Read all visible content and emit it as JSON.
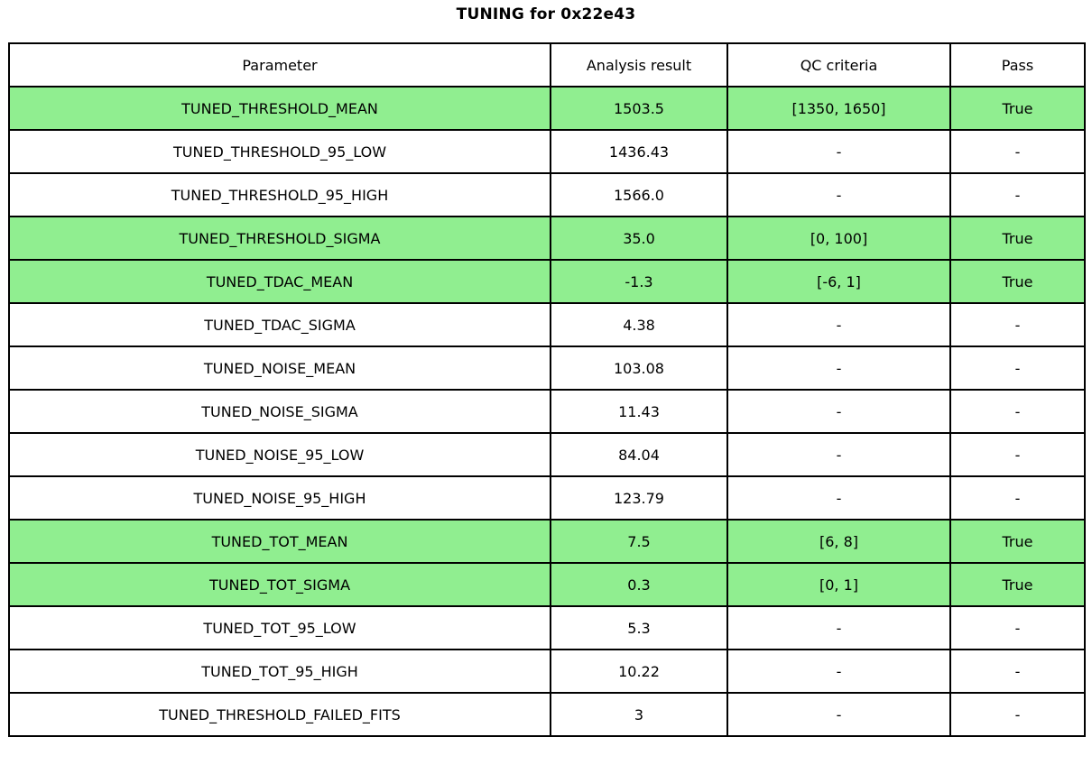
{
  "chart_data": {
    "type": "table",
    "title": "TUNING for 0x22e43",
    "columns": [
      "Parameter",
      "Analysis result",
      "QC criteria",
      "Pass"
    ],
    "rows": [
      {
        "parameter": "TUNED_THRESHOLD_MEAN",
        "result": "1503.5",
        "criteria": "[1350, 1650]",
        "pass": "True",
        "highlight": true
      },
      {
        "parameter": "TUNED_THRESHOLD_95_LOW",
        "result": "1436.43",
        "criteria": "-",
        "pass": "-",
        "highlight": false
      },
      {
        "parameter": "TUNED_THRESHOLD_95_HIGH",
        "result": "1566.0",
        "criteria": "-",
        "pass": "-",
        "highlight": false
      },
      {
        "parameter": "TUNED_THRESHOLD_SIGMA",
        "result": "35.0",
        "criteria": "[0, 100]",
        "pass": "True",
        "highlight": true
      },
      {
        "parameter": "TUNED_TDAC_MEAN",
        "result": "-1.3",
        "criteria": "[-6, 1]",
        "pass": "True",
        "highlight": true
      },
      {
        "parameter": "TUNED_TDAC_SIGMA",
        "result": "4.38",
        "criteria": "-",
        "pass": "-",
        "highlight": false
      },
      {
        "parameter": "TUNED_NOISE_MEAN",
        "result": "103.08",
        "criteria": "-",
        "pass": "-",
        "highlight": false
      },
      {
        "parameter": "TUNED_NOISE_SIGMA",
        "result": "11.43",
        "criteria": "-",
        "pass": "-",
        "highlight": false
      },
      {
        "parameter": "TUNED_NOISE_95_LOW",
        "result": "84.04",
        "criteria": "-",
        "pass": "-",
        "highlight": false
      },
      {
        "parameter": "TUNED_NOISE_95_HIGH",
        "result": "123.79",
        "criteria": "-",
        "pass": "-",
        "highlight": false
      },
      {
        "parameter": "TUNED_TOT_MEAN",
        "result": "7.5",
        "criteria": "[6, 8]",
        "pass": "True",
        "highlight": true
      },
      {
        "parameter": "TUNED_TOT_SIGMA",
        "result": "0.3",
        "criteria": "[0, 1]",
        "pass": "True",
        "highlight": true
      },
      {
        "parameter": "TUNED_TOT_95_LOW",
        "result": "5.3",
        "criteria": "-",
        "pass": "-",
        "highlight": false
      },
      {
        "parameter": "TUNED_TOT_95_HIGH",
        "result": "10.22",
        "criteria": "-",
        "pass": "-",
        "highlight": false
      },
      {
        "parameter": "TUNED_THRESHOLD_FAILED_FITS",
        "result": "3",
        "criteria": "-",
        "pass": "-",
        "highlight": false
      }
    ],
    "layout": {
      "highlight_color": "#90EE90",
      "border_color": "#000000",
      "background_color": "#ffffff"
    }
  }
}
